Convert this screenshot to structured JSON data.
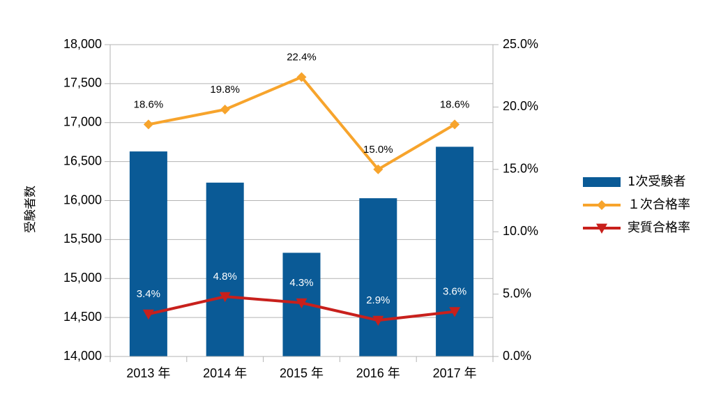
{
  "chart_data": {
    "type": "bar",
    "categories": [
      "2013 年",
      "2014 年",
      "2015 年",
      "2016 年",
      "2017 年"
    ],
    "ylabel": "受験者数",
    "ylim": [
      14000,
      18000
    ],
    "yticks": [
      "14,000",
      "14,500",
      "15,000",
      "15,500",
      "16,000",
      "16,500",
      "17,000",
      "17,500",
      "18,000"
    ],
    "y2lim": [
      0,
      25
    ],
    "y2ticks": [
      "0.0%",
      "5.0%",
      "10.0%",
      "15.0%",
      "20.0%",
      "25.0%"
    ],
    "grid": true,
    "legend_position": "right",
    "series": [
      {
        "name": "1次受験者",
        "type": "bar",
        "axis": "left",
        "color": "#0a5a96",
        "values": [
          16630,
          16230,
          15330,
          16030,
          16690
        ]
      },
      {
        "name": "１次合格率",
        "type": "line",
        "axis": "right",
        "marker": "diamond",
        "color": "#f7a42c",
        "values": [
          18.6,
          19.8,
          22.4,
          15.0,
          18.6
        ],
        "labels": [
          "18.6%",
          "19.8%",
          "22.4%",
          "15.0%",
          "18.6%"
        ],
        "label_color": "#000000"
      },
      {
        "name": "実質合格率",
        "type": "line",
        "axis": "right",
        "marker": "triangle-down",
        "color": "#c8201c",
        "values": [
          3.4,
          4.8,
          4.3,
          2.9,
          3.6
        ],
        "labels": [
          "3.4%",
          "4.8%",
          "4.3%",
          "2.9%",
          "3.6%"
        ],
        "label_color": "#ffffff"
      }
    ]
  }
}
